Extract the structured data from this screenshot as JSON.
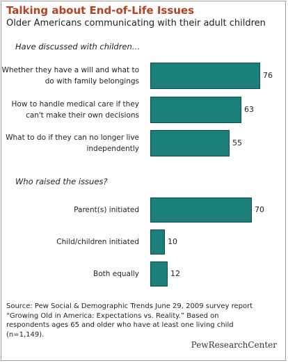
{
  "title": "Talking about End-of-Life Issues",
  "subtitle": "Older Americans communicating with their adult children",
  "source": "Source:  Pew Social & Demographic Trends June 29, 2009 survey report “Growing Old in America: Expectations vs. Reality.” Based on respondents ages 65 and older who have at least one living child (n=1,149).",
  "brand": "PewResearchCenter",
  "colors": {
    "bar": "#1d7f79",
    "title": "#b8401e"
  },
  "chart_data": [
    {
      "type": "bar",
      "orientation": "horizontal",
      "section_label": "Have discussed with children…",
      "categories": [
        "Whether they have a will and what to do with family belongings",
        "How to handle medical care if they can't make their own decisions",
        "What to do if they can no longer live independently"
      ],
      "values": [
        76,
        63,
        55
      ]
    },
    {
      "type": "bar",
      "orientation": "horizontal",
      "section_label": "Who raised the issues?",
      "categories": [
        "Parent(s) initiated",
        "Child/children initiated",
        "Both equally"
      ],
      "values": [
        70,
        10,
        12
      ]
    }
  ]
}
